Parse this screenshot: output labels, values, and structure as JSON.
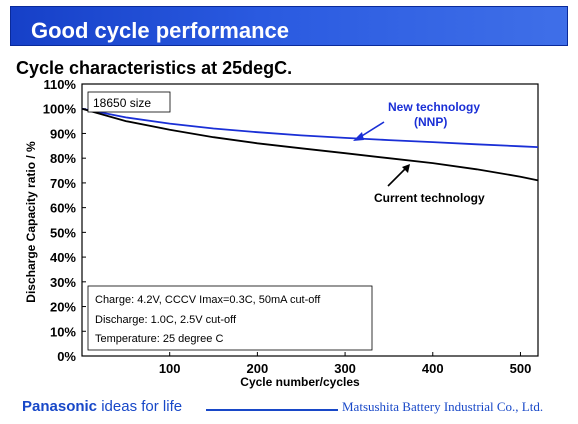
{
  "slide": {
    "title": "Good cycle performance",
    "subtitle": "Cycle characteristics at 25degC.",
    "footer_brand": "Panasonic",
    "footer_tagline": "ideas for life",
    "footer_company": "Matsushita Battery Industrial Co., Ltd."
  },
  "colors": {
    "title_bar": "#2a5ae0",
    "new_tech": "#1a2fd6",
    "current_tech": "#000000",
    "brand_blue": "#1848c8"
  },
  "chart_data": {
    "type": "line",
    "title": "Cycle characteristics at 25degC.",
    "xlabel": "Cycle number/cycles",
    "ylabel": "Discharge Capacity ratio / %",
    "xlim": [
      0,
      520
    ],
    "ylim": [
      0,
      110
    ],
    "x_ticks": [
      100,
      200,
      300,
      400,
      500
    ],
    "y_ticks": [
      0,
      10,
      20,
      30,
      40,
      50,
      60,
      70,
      80,
      90,
      100,
      110
    ],
    "y_tick_suffix": "%",
    "grid": false,
    "series": [
      {
        "name": "New technology (NNP)",
        "color": "#1a2fd6",
        "x": [
          0,
          50,
          100,
          150,
          200,
          250,
          300,
          350,
          400,
          450,
          500,
          520
        ],
        "y": [
          100,
          96.5,
          94,
          92,
          90.5,
          89.2,
          88.2,
          87.3,
          86.5,
          85.6,
          84.8,
          84.5
        ]
      },
      {
        "name": "Current technology",
        "color": "#000000",
        "x": [
          0,
          50,
          100,
          150,
          200,
          250,
          300,
          350,
          400,
          450,
          500,
          520
        ],
        "y": [
          100,
          95,
          91.5,
          88.5,
          86,
          84,
          82,
          80,
          78,
          75.5,
          72.5,
          71
        ]
      }
    ],
    "annotations": {
      "size_label": "18650 size",
      "new_tech_line1": "New technology",
      "new_tech_line2": "(NNP)",
      "current_tech": "Current technology",
      "conditions": [
        "Charge: 4.2V, CCCV Imax=0.3C, 50mA cut-off",
        "Discharge: 1.0C, 2.5V cut-off",
        "Temperature: 25 degree C"
      ]
    }
  }
}
